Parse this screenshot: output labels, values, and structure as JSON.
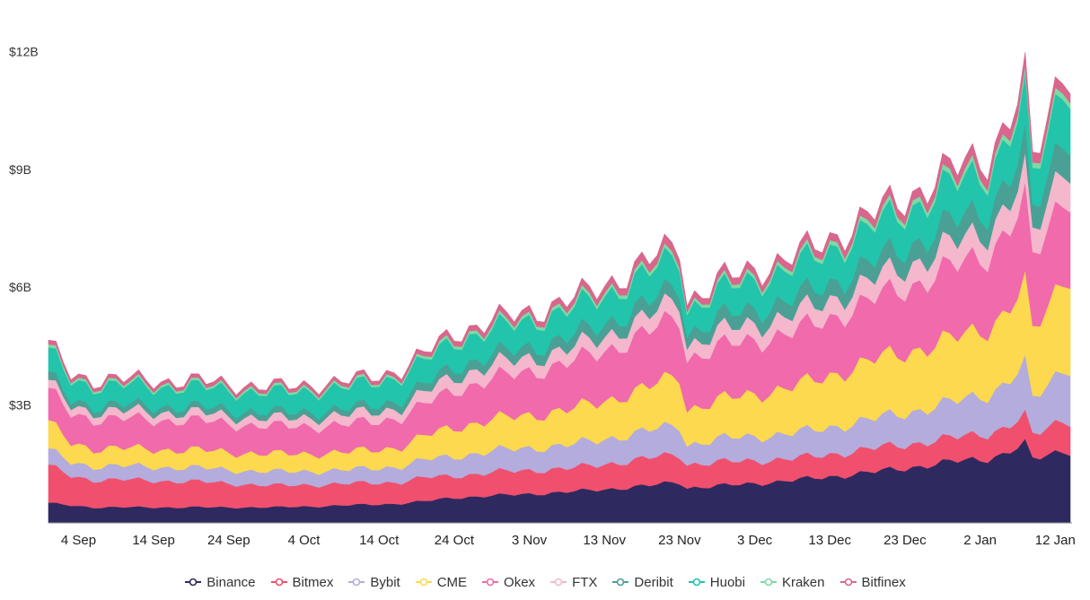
{
  "chart_data": {
    "type": "area",
    "stacked": true,
    "title": "",
    "xlabel": "",
    "ylabel": "",
    "ylim": [
      0,
      13
    ],
    "y_unit": "billion USD",
    "y_ticks": [
      {
        "value": 3,
        "label": "$3B"
      },
      {
        "value": 6,
        "label": "$6B"
      },
      {
        "value": 9,
        "label": "$9B"
      },
      {
        "value": 12,
        "label": "$12B"
      }
    ],
    "x_ticks": [
      "4 Sep",
      "14 Sep",
      "24 Sep",
      "4 Oct",
      "14 Oct",
      "24 Oct",
      "3 Nov",
      "13 Nov",
      "23 Nov",
      "3 Dec",
      "13 Dec",
      "23 Dec",
      "2 Jan",
      "12 Jan"
    ],
    "x_tick_days": [
      4,
      14,
      24,
      34,
      44,
      54,
      64,
      74,
      84,
      94,
      104,
      114,
      124,
      134
    ],
    "x_start_day": 0,
    "x_end_day": 136,
    "grid": false,
    "legend_position": "bottom",
    "anchor_days": [
      0,
      3,
      6,
      10,
      20,
      30,
      40,
      47,
      50,
      54,
      60,
      70,
      80,
      84,
      85,
      90,
      100,
      110,
      120,
      125,
      127,
      130,
      131,
      133,
      135,
      136
    ],
    "series": [
      {
        "name": "Binance",
        "color": "#2e2a5f",
        "values": [
          0.5,
          0.45,
          0.4,
          0.4,
          0.4,
          0.4,
          0.45,
          0.5,
          0.55,
          0.65,
          0.7,
          0.8,
          0.95,
          1.05,
          0.9,
          0.95,
          1.1,
          1.3,
          1.55,
          1.65,
          1.75,
          2.0,
          1.6,
          1.75,
          1.85,
          1.85
        ]
      },
      {
        "name": "Bitmex",
        "color": "#f0506e",
        "values": [
          0.95,
          0.75,
          0.7,
          0.7,
          0.65,
          0.55,
          0.55,
          0.55,
          0.6,
          0.55,
          0.6,
          0.6,
          0.7,
          0.7,
          0.6,
          0.6,
          0.55,
          0.6,
          0.6,
          0.65,
          0.65,
          0.7,
          0.6,
          0.7,
          0.8,
          0.8
        ]
      },
      {
        "name": "Bybit",
        "color": "#b4acdc",
        "values": [
          0.4,
          0.35,
          0.35,
          0.35,
          0.35,
          0.35,
          0.35,
          0.4,
          0.45,
          0.5,
          0.55,
          0.6,
          0.7,
          0.75,
          0.5,
          0.6,
          0.65,
          0.75,
          0.9,
          1.0,
          1.1,
          1.3,
          0.9,
          1.1,
          1.3,
          1.4
        ]
      },
      {
        "name": "CME",
        "color": "#fcd94e",
        "values": [
          0.7,
          0.5,
          0.45,
          0.45,
          0.45,
          0.45,
          0.45,
          0.5,
          0.6,
          0.75,
          0.8,
          0.9,
          1.1,
          1.3,
          0.9,
          1.0,
          1.2,
          1.5,
          1.6,
          1.7,
          1.8,
          2.0,
          1.7,
          2.0,
          2.3,
          2.4
        ]
      },
      {
        "name": "Okex",
        "color": "#f06aac",
        "values": [
          0.8,
          0.75,
          0.75,
          0.75,
          0.75,
          0.7,
          0.7,
          0.75,
          0.8,
          0.95,
          1.05,
          1.2,
          1.4,
          1.5,
          1.3,
          1.35,
          1.4,
          1.55,
          1.8,
          1.9,
          2.0,
          2.1,
          1.8,
          2.0,
          2.1,
          2.1
        ]
      },
      {
        "name": "FTX",
        "color": "#f4b7cc",
        "values": [
          0.2,
          0.2,
          0.2,
          0.2,
          0.2,
          0.2,
          0.25,
          0.25,
          0.3,
          0.35,
          0.35,
          0.35,
          0.4,
          0.45,
          0.35,
          0.4,
          0.45,
          0.5,
          0.6,
          0.6,
          0.65,
          0.7,
          0.6,
          0.7,
          0.8,
          0.8
        ]
      },
      {
        "name": "Deribit",
        "color": "#4aa094",
        "values": [
          0.2,
          0.15,
          0.15,
          0.15,
          0.15,
          0.15,
          0.15,
          0.2,
          0.2,
          0.25,
          0.25,
          0.3,
          0.35,
          0.35,
          0.3,
          0.35,
          0.4,
          0.45,
          0.55,
          0.55,
          0.6,
          0.7,
          0.55,
          0.65,
          0.75,
          0.75
        ]
      },
      {
        "name": "Huobi",
        "color": "#22c4ab",
        "values": [
          0.6,
          0.5,
          0.5,
          0.5,
          0.5,
          0.5,
          0.55,
          0.6,
          0.6,
          0.65,
          0.65,
          0.7,
          0.75,
          0.75,
          0.6,
          0.7,
          0.8,
          0.9,
          0.95,
          0.95,
          1.0,
          1.2,
          0.9,
          1.1,
          1.3,
          1.3
        ]
      },
      {
        "name": "Kraken",
        "color": "#7ed9a2",
        "values": [
          0.08,
          0.06,
          0.06,
          0.06,
          0.06,
          0.06,
          0.06,
          0.06,
          0.07,
          0.08,
          0.08,
          0.09,
          0.1,
          0.1,
          0.08,
          0.09,
          0.1,
          0.12,
          0.13,
          0.14,
          0.14,
          0.16,
          0.13,
          0.15,
          0.16,
          0.16
        ]
      },
      {
        "name": "Bitfinex",
        "color": "#d9668c",
        "values": [
          0.1,
          0.09,
          0.09,
          0.09,
          0.09,
          0.09,
          0.09,
          0.1,
          0.11,
          0.13,
          0.14,
          0.15,
          0.2,
          0.22,
          0.15,
          0.17,
          0.18,
          0.2,
          0.25,
          0.27,
          0.28,
          0.3,
          0.25,
          0.27,
          0.25,
          0.25
        ]
      }
    ]
  }
}
